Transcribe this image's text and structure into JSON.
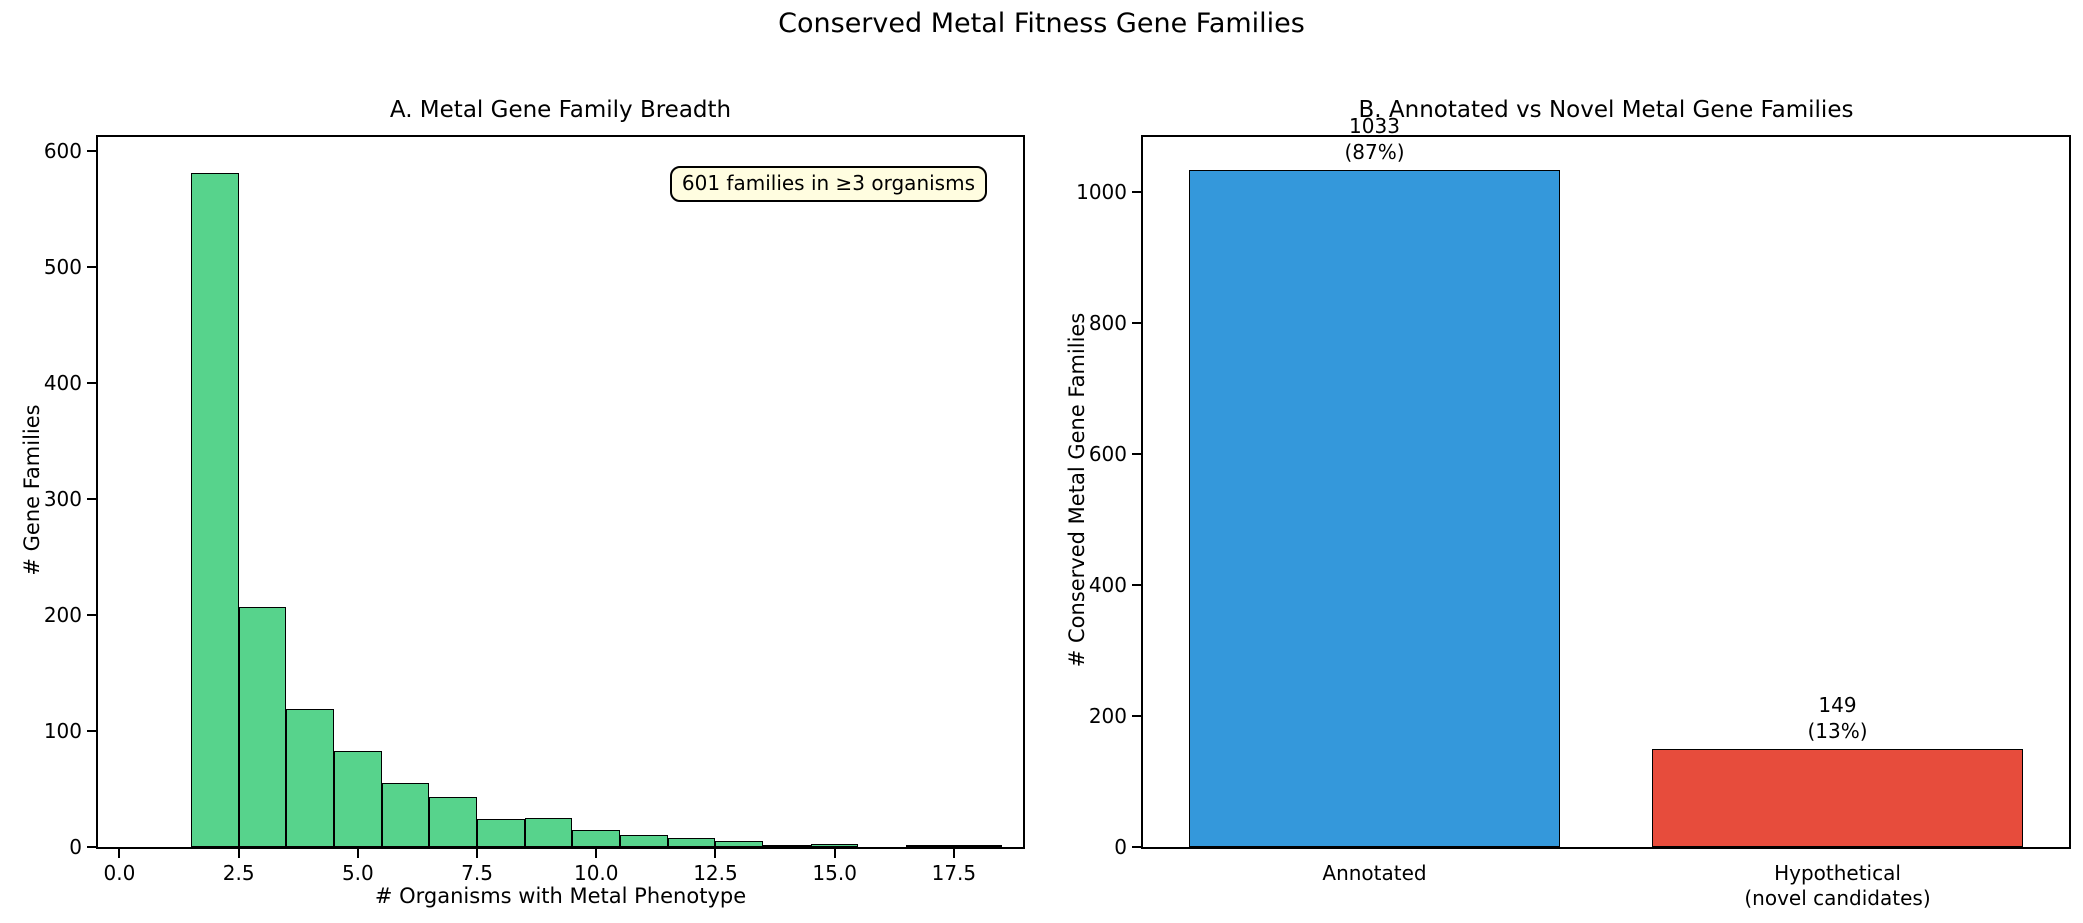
{
  "figure": {
    "suptitle": "Conserved Metal Fitness Gene Families",
    "background_color": "#ffffff"
  },
  "chart_data": [
    {
      "type": "bar",
      "subtype": "histogram",
      "panel": "A",
      "title": "A. Metal Gene Family Breadth",
      "xlabel": "# Organisms with Metal Phenotype",
      "ylabel": "# Gene Families",
      "bar_color": "#57d38c",
      "bar_edge_color": "#000000",
      "bin_start": 1.5,
      "bin_width": 1.0,
      "bin_centers": [
        2,
        3,
        4,
        5,
        6,
        7,
        8,
        9,
        10,
        11,
        12,
        13,
        14,
        15,
        16,
        17,
        18
      ],
      "values": [
        581,
        207,
        119,
        83,
        55,
        43,
        24,
        25,
        15,
        10,
        8,
        5,
        2,
        3,
        0,
        1,
        1
      ],
      "xlim": [
        -0.45,
        18.95
      ],
      "ylim": [
        0,
        612
      ],
      "xticks": [
        0.0,
        2.5,
        5.0,
        7.5,
        10.0,
        12.5,
        15.0,
        17.5
      ],
      "xtick_labels": [
        "0.0",
        "2.5",
        "5.0",
        "7.5",
        "10.0",
        "12.5",
        "15.0",
        "17.5"
      ],
      "yticks": [
        0,
        100,
        200,
        300,
        400,
        500,
        600
      ],
      "ytick_labels": [
        "0",
        "100",
        "200",
        "300",
        "400",
        "500",
        "600"
      ],
      "grid": false,
      "annotation": {
        "text": "601 families in ≥3 organisms",
        "bg_color": "#fffde0",
        "border_color": "#000000"
      }
    },
    {
      "type": "bar",
      "subtype": "categorical",
      "panel": "B",
      "title": "B. Annotated vs Novel Metal Gene Families",
      "xlabel": "",
      "ylabel": "# Conserved Metal Gene Families",
      "categories": [
        "Annotated",
        "Hypothetical\n(novel candidates)"
      ],
      "values": [
        1033,
        149
      ],
      "bar_labels": [
        "1033\n(87%)",
        "149\n(13%)"
      ],
      "bar_colors": [
        "#3498db",
        "#e74c3c"
      ],
      "bar_edge_color": "#000000",
      "bar_width_fraction": 0.8,
      "ylim": [
        0,
        1084
      ],
      "yticks": [
        0,
        200,
        400,
        600,
        800,
        1000
      ],
      "ytick_labels": [
        "0",
        "200",
        "400",
        "600",
        "800",
        "1000"
      ],
      "grid": false
    }
  ]
}
